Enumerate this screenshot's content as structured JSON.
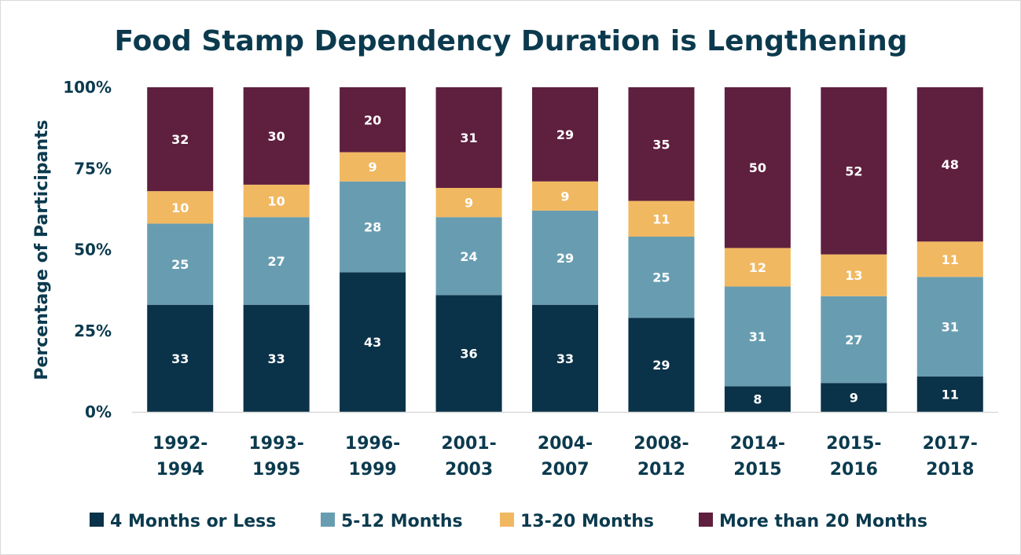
{
  "chart_data": {
    "type": "bar",
    "stacked": true,
    "percent_stacked": true,
    "title": "Food Stamp Dependency Duration is Lengthening",
    "xlabel": "",
    "ylabel": "Percentage of Participants",
    "ylim": [
      0,
      100
    ],
    "yticks": [
      "0%",
      "25%",
      "50%",
      "75%",
      "100%"
    ],
    "grid": false,
    "legend_position": "bottom",
    "categories": [
      [
        "1992-",
        "1994"
      ],
      [
        "1993-",
        "1995"
      ],
      [
        "1996-",
        "1999"
      ],
      [
        "2001-",
        "2003"
      ],
      [
        "2004-",
        "2007"
      ],
      [
        "2008-",
        "2012"
      ],
      [
        "2014-",
        "2015"
      ],
      [
        "2015-",
        "2016"
      ],
      [
        "2017-",
        "2018"
      ]
    ],
    "series": [
      {
        "name": "4 Months or Less",
        "color": "#0a3249",
        "values": [
          33,
          33,
          43,
          36,
          33,
          29,
          8,
          9,
          11
        ]
      },
      {
        "name": "5-12 Months",
        "color": "#689db1",
        "values": [
          25,
          27,
          28,
          24,
          29,
          25,
          31,
          27,
          31
        ]
      },
      {
        "name": "13-20 Months",
        "color": "#f1b862",
        "values": [
          10,
          10,
          9,
          9,
          9,
          11,
          12,
          13,
          11
        ]
      },
      {
        "name": "More than 20 Months",
        "color": "#5f1f3e",
        "values": [
          32,
          30,
          20,
          31,
          29,
          35,
          50,
          52,
          48
        ]
      }
    ]
  }
}
